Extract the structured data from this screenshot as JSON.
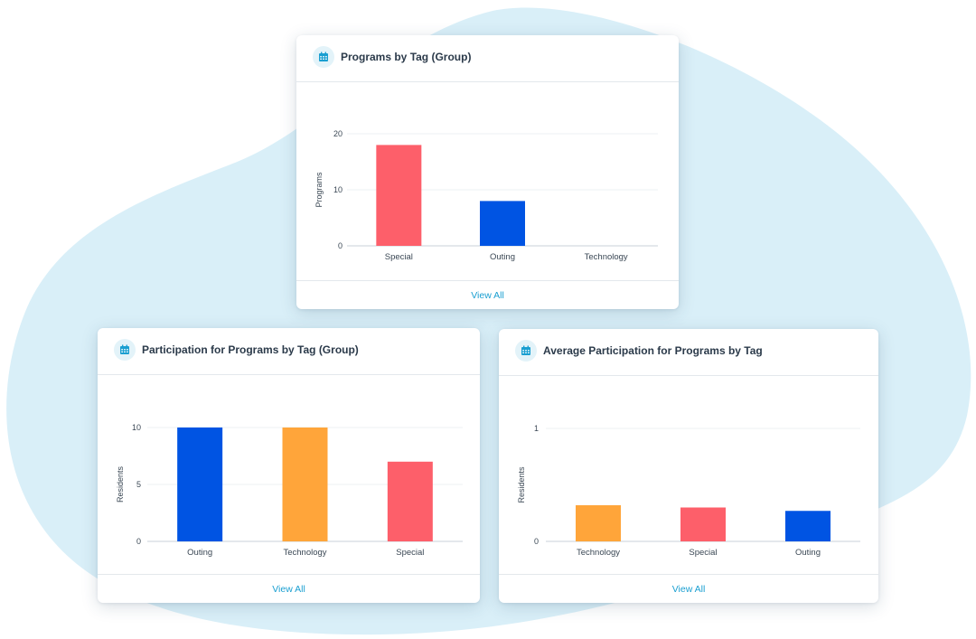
{
  "colors": {
    "background_blob": "#d9eff8",
    "coral": "#fd5f6a",
    "blue": "#0054e3",
    "orange": "#ffa53a",
    "link": "#1a9fd1",
    "grid": "#eef1f3",
    "icon": "#1a9fd1"
  },
  "cards": [
    {
      "title": "Programs by Tag (Group)",
      "icon": "calendar-icon",
      "footer_link": "View All"
    },
    {
      "title": "Participation for Programs by Tag (Group)",
      "icon": "calendar-icon",
      "footer_link": "View All"
    },
    {
      "title": "Average Participation for Programs by Tag",
      "icon": "calendar-icon",
      "footer_link": "View All"
    }
  ],
  "chart_data": [
    {
      "type": "bar",
      "title": "Programs by Tag (Group)",
      "ylabel": "Programs",
      "categories": [
        "Special",
        "Outing",
        "Technology"
      ],
      "values": [
        18,
        8,
        0
      ],
      "bar_colors": [
        "#fd5f6a",
        "#0054e3",
        "#ffa53a"
      ],
      "ylim": [
        0,
        20
      ],
      "yticks": [
        0,
        10,
        20
      ],
      "grid": true
    },
    {
      "type": "bar",
      "title": "Participation for Programs by Tag (Group)",
      "ylabel": "Residents",
      "categories": [
        "Outing",
        "Technology",
        "Special"
      ],
      "values": [
        10,
        10,
        7
      ],
      "bar_colors": [
        "#0054e3",
        "#ffa53a",
        "#fd5f6a"
      ],
      "ylim": [
        0,
        10
      ],
      "yticks": [
        0,
        5,
        10
      ],
      "grid": true
    },
    {
      "type": "bar",
      "title": "Average Participation for Programs by Tag",
      "ylabel": "Residents",
      "categories": [
        "Technology",
        "Special",
        "Outing"
      ],
      "values": [
        0.32,
        0.3,
        0.27
      ],
      "bar_colors": [
        "#ffa53a",
        "#fd5f6a",
        "#0054e3"
      ],
      "ylim": [
        0,
        1
      ],
      "yticks": [
        0,
        1
      ],
      "grid": true
    }
  ]
}
